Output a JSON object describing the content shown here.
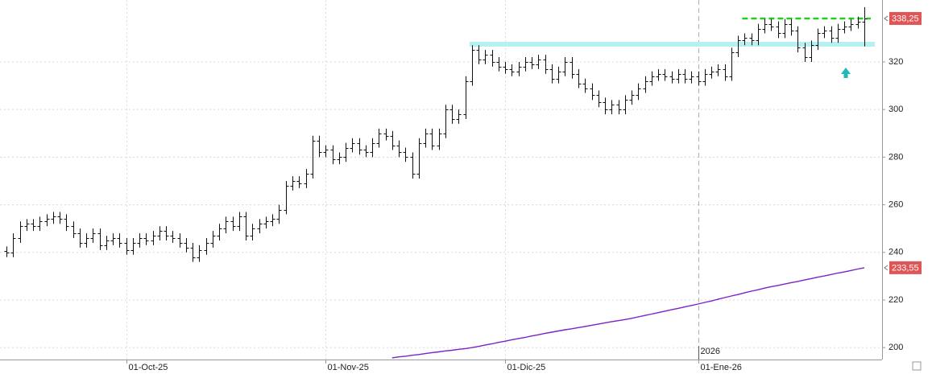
{
  "chart_data": {
    "type": "ohlc",
    "categories": [
      null,
      null,
      null,
      null,
      null,
      null,
      null,
      null,
      null,
      null,
      null,
      null,
      null,
      null,
      null,
      null,
      null,
      null,
      "01-Oct-25",
      null,
      null,
      null,
      null,
      null,
      null,
      null,
      null,
      null,
      null,
      null,
      null,
      null,
      null,
      null,
      null,
      null,
      null,
      null,
      null,
      null,
      null,
      null,
      null,
      null,
      null,
      null,
      null,
      null,
      "01-Nov-25",
      null,
      null,
      null,
      null,
      null,
      null,
      null,
      null,
      null,
      null,
      null,
      null,
      null,
      null,
      null,
      null,
      null,
      null,
      null,
      null,
      null,
      null,
      null,
      null,
      null,
      null,
      "01-Dic-25",
      null,
      null,
      null,
      null,
      null,
      null,
      null,
      null,
      null,
      null,
      null,
      null,
      null,
      null,
      null,
      null,
      null,
      null,
      null,
      null,
      null,
      null,
      null,
      null,
      null,
      null,
      null,
      null,
      "01-Ene-26",
      null,
      null,
      null,
      null,
      null,
      null,
      null,
      null,
      null,
      null,
      null,
      null,
      null,
      null,
      null,
      null,
      null,
      null,
      null,
      null,
      null,
      null,
      null,
      null,
      null
    ],
    "year_label": {
      "index": 104,
      "label": "2026"
    },
    "ohlc": {
      "color": "#111111",
      "open": [
        240.5,
        240,
        246,
        251,
        252,
        251,
        253,
        254,
        255,
        254,
        251,
        248,
        244,
        246,
        248,
        243,
        245,
        246,
        244,
        241,
        244,
        246,
        245,
        247,
        249,
        247,
        246,
        244,
        242,
        238,
        241,
        244,
        247,
        250,
        253,
        251,
        255,
        247,
        250,
        252,
        253,
        254,
        258,
        268,
        270,
        269,
        273,
        287,
        282,
        283,
        279,
        280,
        284,
        286,
        283,
        282,
        286,
        290,
        289,
        285,
        282,
        280,
        273,
        286,
        290,
        285,
        290,
        300,
        296,
        298,
        312,
        325,
        321,
        323,
        320,
        318,
        317,
        316,
        318,
        320,
        319,
        321,
        317,
        313,
        316,
        320,
        315,
        311,
        309,
        306,
        303,
        300,
        302,
        300,
        304,
        306,
        309,
        312,
        314,
        315,
        314,
        313,
        315,
        313,
        314,
        312,
        315,
        316,
        317,
        314,
        324,
        329,
        330,
        329,
        334,
        336,
        335,
        332,
        336,
        333,
        326,
        322,
        327,
        332,
        333,
        330,
        334,
        335,
        336,
        337
      ],
      "high": [
        242.5,
        248,
        253,
        254,
        254,
        255,
        256,
        257,
        257,
        256,
        253,
        250,
        248,
        250,
        250,
        247,
        248,
        248,
        246,
        246,
        248,
        248,
        249,
        251,
        251,
        249,
        248,
        246,
        244,
        243,
        246,
        249,
        252,
        255,
        255,
        257,
        257,
        252,
        254,
        255,
        256,
        260,
        270,
        272,
        272,
        275,
        289,
        289,
        285,
        285,
        282,
        286,
        288,
        288,
        285,
        288,
        292,
        292,
        291,
        287,
        284,
        282,
        288,
        292,
        292,
        292,
        302,
        302,
        300,
        314,
        327,
        327,
        325,
        325,
        322,
        320,
        319,
        320,
        322,
        322,
        323,
        323,
        319,
        318,
        322,
        322,
        317,
        313,
        311,
        308,
        305,
        304,
        304,
        306,
        308,
        311,
        314,
        316,
        317,
        317,
        316,
        317,
        317,
        316,
        316,
        317,
        318,
        319,
        319,
        326,
        331,
        332,
        332,
        336,
        338,
        338,
        337,
        338,
        338,
        335,
        328,
        329,
        334,
        335,
        335,
        336,
        337,
        338,
        339,
        343
      ],
      "low": [
        238,
        238,
        244,
        249,
        249,
        249,
        251,
        252,
        252,
        249,
        246,
        242,
        242,
        244,
        241,
        241,
        243,
        242,
        239,
        239,
        242,
        243,
        243,
        245,
        245,
        244,
        242,
        240,
        236,
        236,
        239,
        242,
        245,
        248,
        249,
        249,
        245,
        245,
        248,
        250,
        251,
        252,
        256,
        266,
        267,
        267,
        271,
        280,
        280,
        277,
        277,
        278,
        282,
        281,
        280,
        280,
        284,
        287,
        283,
        280,
        278,
        271,
        271,
        284,
        283,
        283,
        288,
        294,
        294,
        296,
        310,
        319,
        319,
        318,
        316,
        315,
        314,
        314,
        316,
        317,
        317,
        315,
        311,
        311,
        314,
        313,
        309,
        307,
        304,
        301,
        298,
        298,
        298,
        298,
        302,
        304,
        307,
        310,
        312,
        312,
        311,
        311,
        311,
        311,
        310,
        310,
        313,
        314,
        312,
        312,
        322,
        327,
        327,
        327,
        332,
        333,
        330,
        330,
        331,
        324,
        320,
        320,
        325,
        330,
        328,
        328,
        332,
        333,
        334,
        326.5
      ],
      "close": [
        240,
        246,
        251,
        252,
        251,
        253,
        254,
        255,
        254,
        251,
        248,
        244,
        246,
        248,
        243,
        245,
        246,
        244,
        241,
        244,
        246,
        245,
        247,
        249,
        247,
        246,
        244,
        242,
        238,
        241,
        244,
        247,
        250,
        253,
        251,
        255,
        247,
        250,
        252,
        253,
        254,
        258,
        268,
        270,
        269,
        273,
        287,
        282,
        283,
        279,
        280,
        284,
        286,
        283,
        282,
        286,
        290,
        289,
        285,
        282,
        280,
        273,
        286,
        290,
        285,
        290,
        300,
        296,
        298,
        312,
        325,
        321,
        323,
        320,
        318,
        317,
        316,
        318,
        320,
        319,
        321,
        317,
        313,
        316,
        320,
        315,
        311,
        309,
        306,
        303,
        300,
        302,
        300,
        304,
        306,
        309,
        312,
        314,
        315,
        314,
        313,
        315,
        313,
        314,
        312,
        315,
        316,
        317,
        314,
        324,
        329,
        330,
        329,
        334,
        336,
        335,
        332,
        336,
        333,
        326,
        322,
        327,
        332,
        333,
        330,
        334,
        335,
        336,
        337,
        338.25
      ]
    },
    "moving_average": {
      "color": "#7b22c8",
      "values": [
        null,
        null,
        null,
        null,
        null,
        null,
        null,
        null,
        null,
        null,
        null,
        null,
        null,
        null,
        null,
        null,
        null,
        null,
        null,
        null,
        null,
        null,
        null,
        null,
        null,
        null,
        null,
        null,
        null,
        null,
        null,
        null,
        null,
        null,
        null,
        null,
        null,
        null,
        null,
        null,
        null,
        null,
        null,
        null,
        null,
        null,
        null,
        null,
        null,
        null,
        null,
        null,
        null,
        null,
        null,
        null,
        null,
        null,
        195.7,
        196.1,
        196.4,
        196.8,
        197.1,
        197.5,
        197.9,
        198.2,
        198.6,
        198.9,
        199.3,
        199.6,
        200.0,
        200.5,
        201.1,
        201.6,
        202.2,
        202.7,
        203.3,
        203.8,
        204.3,
        204.9,
        205.4,
        206.0,
        206.5,
        207.0,
        207.5,
        207.9,
        208.4,
        208.9,
        209.4,
        209.9,
        210.4,
        210.9,
        211.3,
        211.8,
        212.3,
        212.9,
        213.5,
        214.1,
        214.7,
        215.3,
        215.9,
        216.5,
        217.1,
        217.7,
        218.3,
        219.0,
        219.6,
        220.3,
        221.0,
        221.7,
        222.3,
        223.0,
        223.7,
        224.3,
        225.0,
        225.6,
        226.1,
        226.7,
        227.3,
        227.8,
        228.4,
        229.0,
        229.6,
        230.1,
        230.7,
        231.3,
        231.8,
        232.4,
        233.0,
        233.55
      ]
    },
    "levels": [
      {
        "value": 338.25,
        "color": "#22cc22",
        "style": "dashed"
      },
      {
        "value": 327.4,
        "color": "#b6f0f0",
        "style": "band"
      }
    ],
    "last_labels": [
      {
        "value": 338.25,
        "label": "338,25",
        "color": "#e05555"
      },
      {
        "value": 233.55,
        "label": "233,55",
        "color": "#e05555"
      }
    ],
    "ylim": [
      195,
      346
    ],
    "yticks": [
      200,
      220,
      240,
      260,
      280,
      300,
      320
    ],
    "grid": true
  }
}
